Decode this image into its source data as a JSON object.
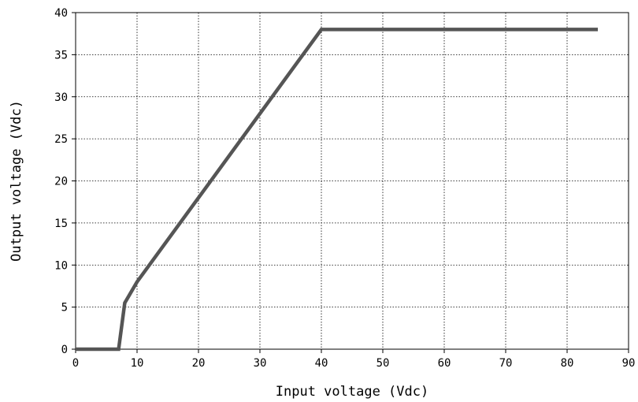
{
  "chart_data": {
    "type": "line",
    "title": "",
    "xlabel": "Input voltage (Vdc)",
    "ylabel": "Output voltage (Vdc)",
    "xlim": [
      0,
      90
    ],
    "ylim": [
      0,
      40
    ],
    "x_ticks": [
      0,
      10,
      20,
      30,
      40,
      50,
      60,
      70,
      80,
      90
    ],
    "y_ticks": [
      0,
      5,
      10,
      15,
      20,
      25,
      30,
      35,
      40
    ],
    "grid": true,
    "series": [
      {
        "color": "#555555",
        "x": [
          0,
          7,
          8,
          10,
          40,
          85
        ],
        "y": [
          0,
          0,
          5.5,
          8,
          38,
          38
        ]
      }
    ]
  }
}
